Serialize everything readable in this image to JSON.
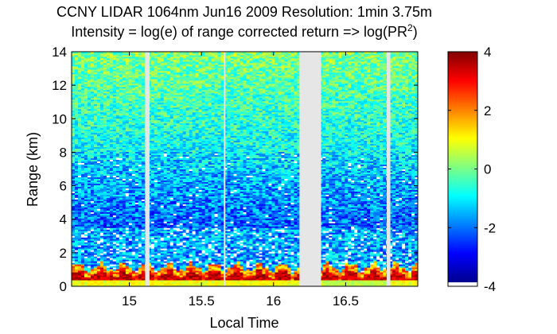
{
  "chart_data": {
    "type": "heatmap",
    "title": "CCNY LIDAR 1064nm Jun16 2009 Resolution: 1min 3.75m",
    "subtitle_main": "Intensity = log(e) of range corrected return => log(PR",
    "subtitle_sup": "2",
    "subtitle_end": ")",
    "xlabel": "Local Time",
    "ylabel": "Range (km)",
    "xlim": [
      14.6,
      17.0
    ],
    "ylim": [
      0,
      14
    ],
    "x_ticks": [
      15,
      15.5,
      16,
      16.5
    ],
    "x_tick_labels": [
      "15",
      "15.5",
      "16",
      "16.5"
    ],
    "y_ticks": [
      0,
      2,
      4,
      6,
      8,
      10,
      12,
      14
    ],
    "y_tick_labels": [
      "0",
      "2",
      "4",
      "6",
      "8",
      "10",
      "12",
      "14"
    ],
    "colorbar": {
      "range": [
        -4,
        4
      ],
      "ticks": [
        -4,
        -2,
        0,
        2,
        4
      ],
      "tick_labels": [
        "-4",
        "-2",
        "0",
        "2",
        "4"
      ],
      "colormap": "jet"
    },
    "data_gaps": [
      {
        "start": 15.11,
        "end": 15.14
      },
      {
        "start": 15.655,
        "end": 15.665
      },
      {
        "start": 16.18,
        "end": 16.33
      },
      {
        "start": 16.785,
        "end": 16.81
      }
    ],
    "gap_color": "#e6e6e6"
  }
}
